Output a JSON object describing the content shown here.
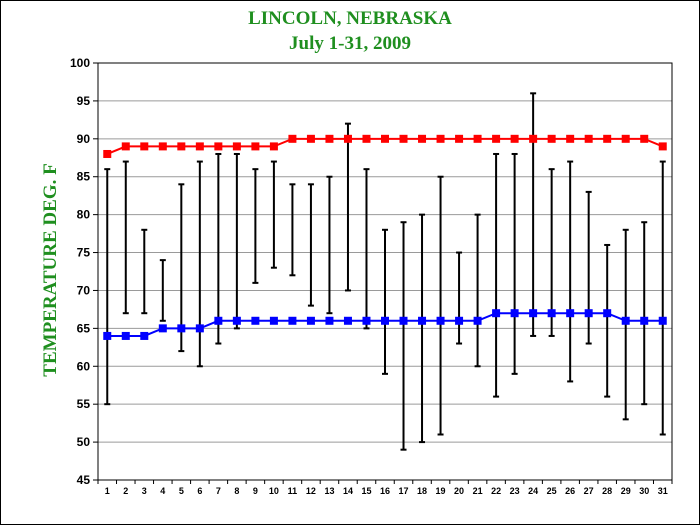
{
  "chart_data": {
    "type": "line",
    "title": "LINCOLN, NEBRASKA",
    "subtitle": "July 1-31, 2009",
    "xlabel": "",
    "ylabel": "TEMPERATURE DEG. F",
    "ylim": [
      45,
      100
    ],
    "yticks": [
      45,
      50,
      55,
      60,
      65,
      70,
      75,
      80,
      85,
      90,
      95,
      100
    ],
    "grid": true,
    "x": [
      1,
      2,
      3,
      4,
      5,
      6,
      7,
      8,
      9,
      10,
      11,
      12,
      13,
      14,
      15,
      16,
      17,
      18,
      19,
      20,
      21,
      22,
      23,
      24,
      25,
      26,
      27,
      28,
      29,
      30,
      31
    ],
    "series": [
      {
        "color": "#ff0000",
        "marker": "square",
        "values": [
          88,
          89,
          89,
          89,
          89,
          89,
          89,
          89,
          89,
          89,
          90,
          90,
          90,
          90,
          90,
          90,
          90,
          90,
          90,
          90,
          90,
          90,
          90,
          90,
          90,
          90,
          90,
          90,
          90,
          90,
          89
        ]
      },
      {
        "color": "#0000ff",
        "marker": "square",
        "values": [
          64,
          64,
          64,
          65,
          65,
          65,
          66,
          66,
          66,
          66,
          66,
          66,
          66,
          66,
          66,
          66,
          66,
          66,
          66,
          66,
          66,
          67,
          67,
          67,
          67,
          67,
          67,
          67,
          66,
          66,
          66
        ]
      }
    ],
    "observed_range": {
      "color": "#000000",
      "high": [
        86,
        87,
        78,
        74,
        84,
        87,
        88,
        88,
        86,
        87,
        84,
        84,
        85,
        92,
        86,
        78,
        79,
        80,
        85,
        75,
        80,
        88,
        88,
        96,
        86,
        87,
        83,
        76,
        78,
        79,
        87
      ],
      "low": [
        55,
        67,
        67,
        66,
        62,
        60,
        63,
        65,
        71,
        73,
        72,
        68,
        67,
        70,
        65,
        59,
        49,
        50,
        51,
        63,
        60,
        56,
        59,
        64,
        64,
        58,
        63,
        56,
        53,
        55,
        51
      ]
    }
  }
}
